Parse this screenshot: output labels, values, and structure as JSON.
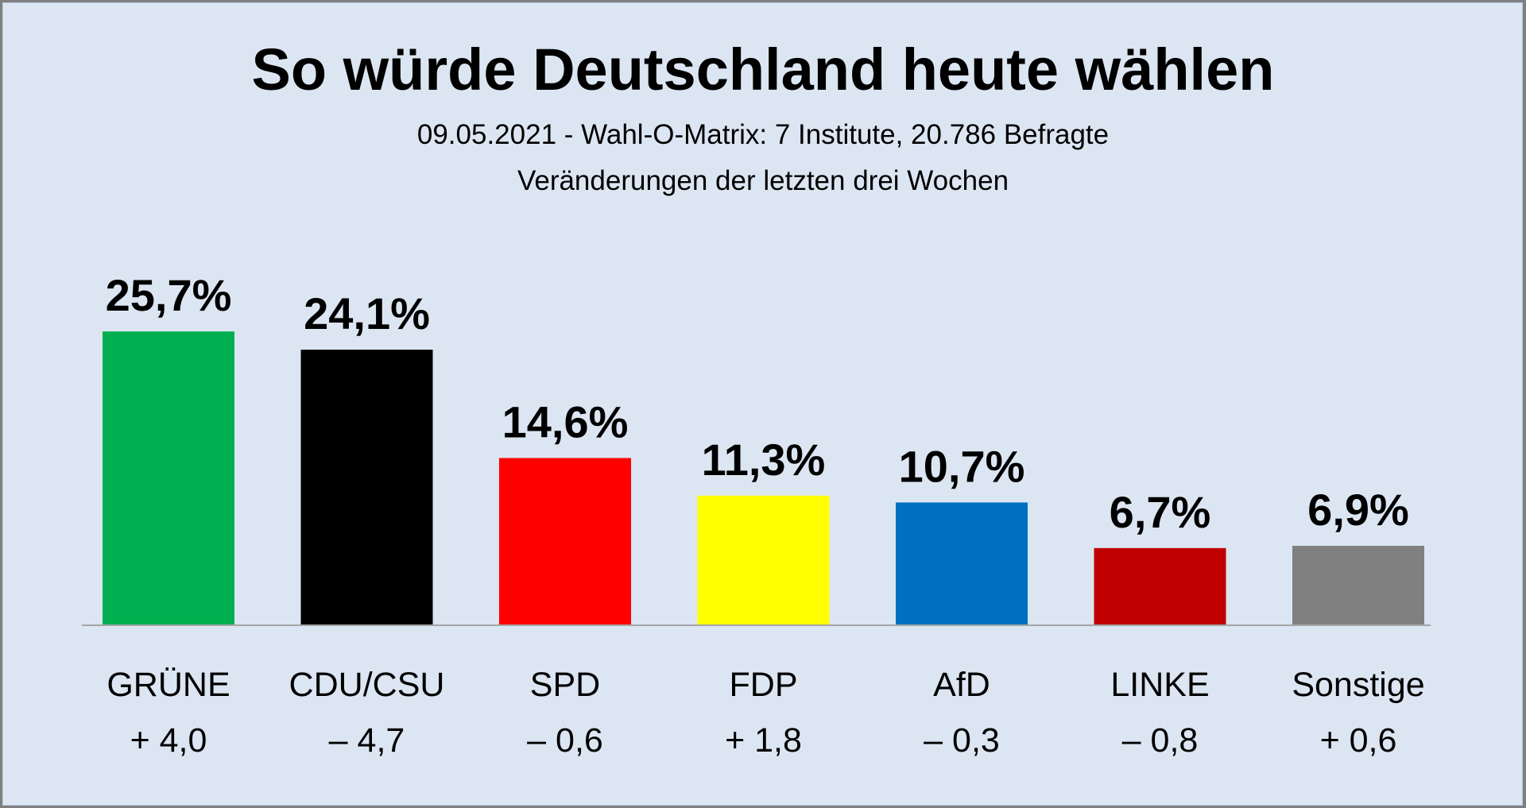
{
  "header": {
    "title": "So würde Deutschland heute wählen",
    "subtitle_line1": "09.05.2021 - Wahl-O-Matrix: 7 Institute, 20.786 Befragte",
    "subtitle_line2": "Veränderungen der letzten drei Wochen"
  },
  "chart_data": {
    "type": "bar",
    "title": "So würde Deutschland heute wählen",
    "subtitle": "09.05.2021 - Wahl-O-Matrix: 7 Institute, 20.786 Befragte; Veränderungen der letzten drei Wochen",
    "xlabel": "",
    "ylabel": "",
    "ylim": [
      0,
      26
    ],
    "grid": false,
    "legend": "none",
    "categories": [
      "GRÜNE",
      "CDU/CSU",
      "SPD",
      "FDP",
      "AfD",
      "LINKE",
      "Sonstige"
    ],
    "values": [
      25.7,
      24.1,
      14.6,
      11.3,
      10.7,
      6.7,
      6.9
    ],
    "value_labels": [
      "25,7%",
      "24,1%",
      "14,6%",
      "11,3%",
      "10,7%",
      "6,7%",
      "6,9%"
    ],
    "changes": [
      4.0,
      -4.7,
      -0.6,
      1.8,
      -0.3,
      -0.8,
      0.6
    ],
    "change_labels": [
      "+ 4,0",
      "– 4,7",
      "– 0,6",
      "+ 1,8",
      "– 0,3",
      "– 0,8",
      "+ 0,6"
    ],
    "colors": [
      "#00b050",
      "#000000",
      "#ff0000",
      "#ffff00",
      "#0070c0",
      "#c00000",
      "#808080"
    ]
  }
}
